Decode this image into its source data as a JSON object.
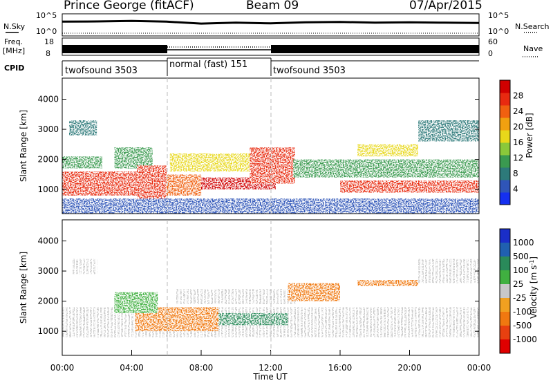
{
  "header": {
    "station": "Prince George (fitACF)",
    "beam": "Beam 09",
    "date": "07/Apr/2015"
  },
  "chart_data": [
    {
      "type": "line",
      "panel": "noise",
      "left_label": "N.Sky",
      "right_label": "N.Search",
      "left_ticks": [
        "10^5",
        "10^0"
      ],
      "right_ticks": [
        "10^5",
        "10^0"
      ],
      "yscale": "log",
      "x": [
        "00:00",
        "02:00",
        "04:00",
        "06:00",
        "08:00",
        "10:00",
        "12:00",
        "14:00",
        "16:00",
        "18:00",
        "20:00",
        "22:00",
        "24:00"
      ],
      "series": [
        {
          "values": [
            3000,
            3500,
            5000,
            3000,
            800,
            1500,
            900,
            2000,
            2500,
            1500,
            2000,
            1500,
            1200
          ]
        },
        {
          "values": [
            0,
            0,
            0,
            0,
            0,
            0,
            0,
            0,
            0,
            0,
            0,
            0,
            0
          ]
        }
      ]
    },
    {
      "type": "line",
      "panel": "frequency",
      "left_label_lines": [
        "Freq.",
        "[MHz]"
      ],
      "right_label": "Nave",
      "left_ticks": [
        18,
        8
      ],
      "right_ticks": [
        60,
        0
      ],
      "segments": [
        {
          "start": "00:00",
          "end": "06:00",
          "frequency_mhz": 11
        },
        {
          "start": "06:00",
          "end": "12:00",
          "frequency_mhz": 10.5,
          "dotted_nave": true
        },
        {
          "start": "12:00",
          "end": "24:00",
          "frequency_mhz": 11
        }
      ]
    },
    {
      "type": "table",
      "panel": "cpid",
      "label": "CPID",
      "segments": [
        {
          "label": "twofsound 3503",
          "start": "00:00",
          "end": "06:00"
        },
        {
          "label": "normal (fast) 151",
          "start": "06:00",
          "end": "12:00"
        },
        {
          "label": "twofsound 3503",
          "start": "12:00",
          "end": "24:00"
        }
      ]
    },
    {
      "type": "heatmap",
      "panel": "power",
      "ylabel": "Slant Range [km]",
      "yticks": [
        1000,
        2000,
        3000,
        4000
      ],
      "ylim": [
        200,
        4700
      ],
      "xlim": [
        "00:00",
        "24:00"
      ],
      "colorbar": {
        "label": "Power [dB]",
        "ticks": [
          4,
          8,
          12,
          16,
          20,
          24,
          28
        ],
        "range": [
          0,
          32
        ],
        "colors": [
          "#1530f0",
          "#2f55b8",
          "#2d7a7a",
          "#3a9a50",
          "#8ac83a",
          "#e8d81a",
          "#f0a010",
          "#f06010",
          "#e82a10",
          "#d00000"
        ]
      },
      "scatter_bands": [
        {
          "start": 0.0,
          "end": 6.0,
          "range_low": 800,
          "range_high": 1600,
          "value": 26
        },
        {
          "start": 0.0,
          "end": 2.3,
          "range_low": 1700,
          "range_high": 2100,
          "value": 12
        },
        {
          "start": 0.4,
          "end": 2.0,
          "range_low": 2800,
          "range_high": 3300,
          "value": 8
        },
        {
          "start": 3.0,
          "end": 5.2,
          "range_low": 1700,
          "range_high": 2400,
          "value": 10
        },
        {
          "start": 4.3,
          "end": 6.0,
          "range_low": 500,
          "range_high": 1800,
          "value": 27
        },
        {
          "start": 6.0,
          "end": 8.0,
          "range_low": 800,
          "range_high": 1500,
          "value": 24
        },
        {
          "start": 6.2,
          "end": 13.0,
          "range_low": 1600,
          "range_high": 2200,
          "value": 18
        },
        {
          "start": 8.0,
          "end": 12.3,
          "range_low": 1000,
          "range_high": 1400,
          "value": 29
        },
        {
          "start": 10.8,
          "end": 13.4,
          "range_low": 1200,
          "range_high": 2400,
          "value": 27
        },
        {
          "start": 13.3,
          "end": 24.0,
          "range_low": 1400,
          "range_high": 2000,
          "value": 10
        },
        {
          "start": 16.0,
          "end": 24.0,
          "range_low": 900,
          "range_high": 1300,
          "value": 27
        },
        {
          "start": 17.0,
          "end": 20.5,
          "range_low": 2100,
          "range_high": 2500,
          "value": 16
        },
        {
          "start": 20.5,
          "end": 24.0,
          "range_low": 2600,
          "range_high": 3300,
          "value": 8
        },
        {
          "start": 0.0,
          "end": 24.0,
          "range_low": 200,
          "range_high": 700,
          "value": 5
        }
      ]
    },
    {
      "type": "heatmap",
      "panel": "velocity",
      "ylabel": "Slant Range [km]",
      "yticks": [
        1000,
        2000,
        3000,
        4000
      ],
      "ylim": [
        200,
        4700
      ],
      "xlim": [
        "00:00",
        "24:00"
      ],
      "xticks": [
        "00:00",
        "04:00",
        "08:00",
        "12:00",
        "16:00",
        "20:00",
        "00:00"
      ],
      "xlabel": "Time UT",
      "colorbar": {
        "label_main": "Velocity [m s",
        "label_sup": "-1",
        "label_end": "]",
        "ticks": [
          1000,
          500,
          100,
          25,
          -25,
          -100,
          -500,
          -1000
        ],
        "colors": [
          "#1a2ec8",
          "#2060b0",
          "#2a8a5a",
          "#40b040",
          "#c8c8c8",
          "#f0a020",
          "#f07810",
          "#e84010",
          "#e00000"
        ]
      },
      "scatter_bands": [
        {
          "start": 0.0,
          "end": 24.0,
          "range_low": 800,
          "range_high": 1800,
          "class": "ground"
        },
        {
          "start": 0.6,
          "end": 2.0,
          "range_low": 2900,
          "range_high": 3400,
          "class": "ground"
        },
        {
          "start": 20.5,
          "end": 24.0,
          "range_low": 2600,
          "range_high": 3400,
          "class": "ground"
        },
        {
          "start": 6.5,
          "end": 13.5,
          "range_low": 1900,
          "range_high": 2400,
          "class": "ground"
        },
        {
          "start": 4.2,
          "end": 9.0,
          "range_low": 1000,
          "range_high": 1800,
          "class": "negative"
        },
        {
          "start": 9.0,
          "end": 13.0,
          "range_low": 1200,
          "range_high": 1600,
          "class": "mixed"
        },
        {
          "start": 3.0,
          "end": 5.5,
          "range_low": 1600,
          "range_high": 2300,
          "class": "positive"
        },
        {
          "start": 17.0,
          "end": 20.5,
          "range_low": 2500,
          "range_high": 2700,
          "class": "negative"
        },
        {
          "start": 13.0,
          "end": 16.0,
          "range_low": 2000,
          "range_high": 2600,
          "class": "negative"
        }
      ]
    }
  ]
}
